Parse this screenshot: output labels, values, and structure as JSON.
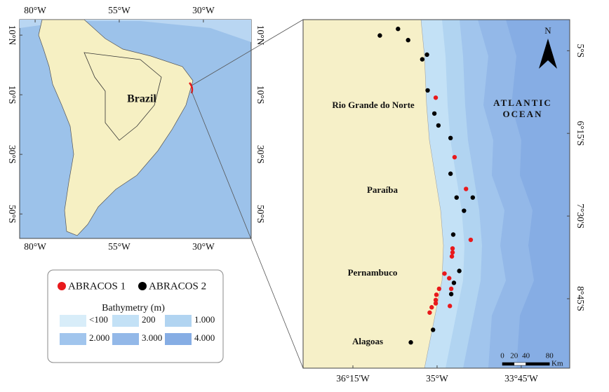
{
  "overview_map": {
    "label": "Brazil",
    "xlim": [
      -84.6,
      -15.8
    ],
    "ylim": [
      -58.2,
      15.2
    ],
    "xticks": [
      {
        "value": -80,
        "label": "80°W"
      },
      {
        "value": -55,
        "label": "55°W"
      },
      {
        "value": -30,
        "label": "30°W"
      }
    ],
    "yticks": [
      {
        "value": 10,
        "label": "10°N"
      },
      {
        "value": -10,
        "label": "10°S"
      },
      {
        "value": -30,
        "label": "30°S"
      },
      {
        "value": -50,
        "label": "50°S"
      }
    ]
  },
  "detail_map": {
    "xlim": [
      -36.99,
      -33.03
    ],
    "ylim": [
      -9.8,
      -4.53
    ],
    "xticks": [
      {
        "value": -36.25,
        "label": "36°15'W"
      },
      {
        "value": -35,
        "label": "35°W"
      },
      {
        "value": -33.75,
        "label": "33°45'W"
      }
    ],
    "yticks": [
      {
        "value": -5,
        "label": "5°S"
      },
      {
        "value": -6.25,
        "label": "6°15'S"
      },
      {
        "value": -7.5,
        "label": "7°30'S"
      },
      {
        "value": -8.75,
        "label": "8°45'S"
      }
    ],
    "regions": [
      "Rio Grande do Norte",
      "Paraíba",
      "Pernambuco",
      "Alagoas"
    ],
    "ocean_label": [
      "ATLANTIC",
      "OCEAN"
    ],
    "north": "N",
    "scale_bar": {
      "ticks": [
        0,
        20,
        40,
        80
      ],
      "unit": "Km"
    },
    "series": [
      {
        "name": "ABRACOS 1",
        "color": "#e8191c",
        "lon": [
          -35.02,
          -34.74,
          -34.57,
          -34.5,
          -34.77,
          -34.77,
          -34.78,
          -34.89,
          -34.82,
          -34.97,
          -34.79,
          -35.01,
          -35.02,
          -35.02,
          -35.08,
          -35.11,
          -34.81
        ],
        "lat": [
          -5.71,
          -6.61,
          -7.09,
          -7.86,
          -7.99,
          -8.05,
          -8.11,
          -8.37,
          -8.44,
          -8.6,
          -8.6,
          -8.69,
          -8.77,
          -8.82,
          -8.88,
          -8.96,
          -8.86
        ]
      },
      {
        "name": "ABRACOS 2",
        "color": "#000000",
        "lon": [
          -35.85,
          -35.58,
          -35.43,
          -35.15,
          -35.22,
          -35.14,
          -35.04,
          -34.98,
          -34.8,
          -34.8,
          -34.71,
          -34.47,
          -34.6,
          -34.76,
          -34.67,
          -34.75,
          -34.79,
          -35.06,
          -35.39
        ],
        "lat": [
          -4.77,
          -4.67,
          -4.84,
          -5.06,
          -5.13,
          -5.6,
          -5.95,
          -6.13,
          -6.32,
          -6.86,
          -7.22,
          -7.22,
          -7.42,
          -7.78,
          -8.33,
          -8.51,
          -8.68,
          -9.22,
          -9.41
        ]
      }
    ]
  },
  "legend": {
    "bathymetry_title": "Bathymetry (m)",
    "bathymetry": [
      {
        "label": "<100",
        "color": "#d8edf9"
      },
      {
        "label": "200",
        "color": "#c3e1f6"
      },
      {
        "label": "1.000",
        "color": "#b1d4f1"
      },
      {
        "label": "2.000",
        "color": "#a1c5ed"
      },
      {
        "label": "3.000",
        "color": "#93b8e8"
      },
      {
        "label": "4.000",
        "color": "#86ade4"
      }
    ]
  }
}
